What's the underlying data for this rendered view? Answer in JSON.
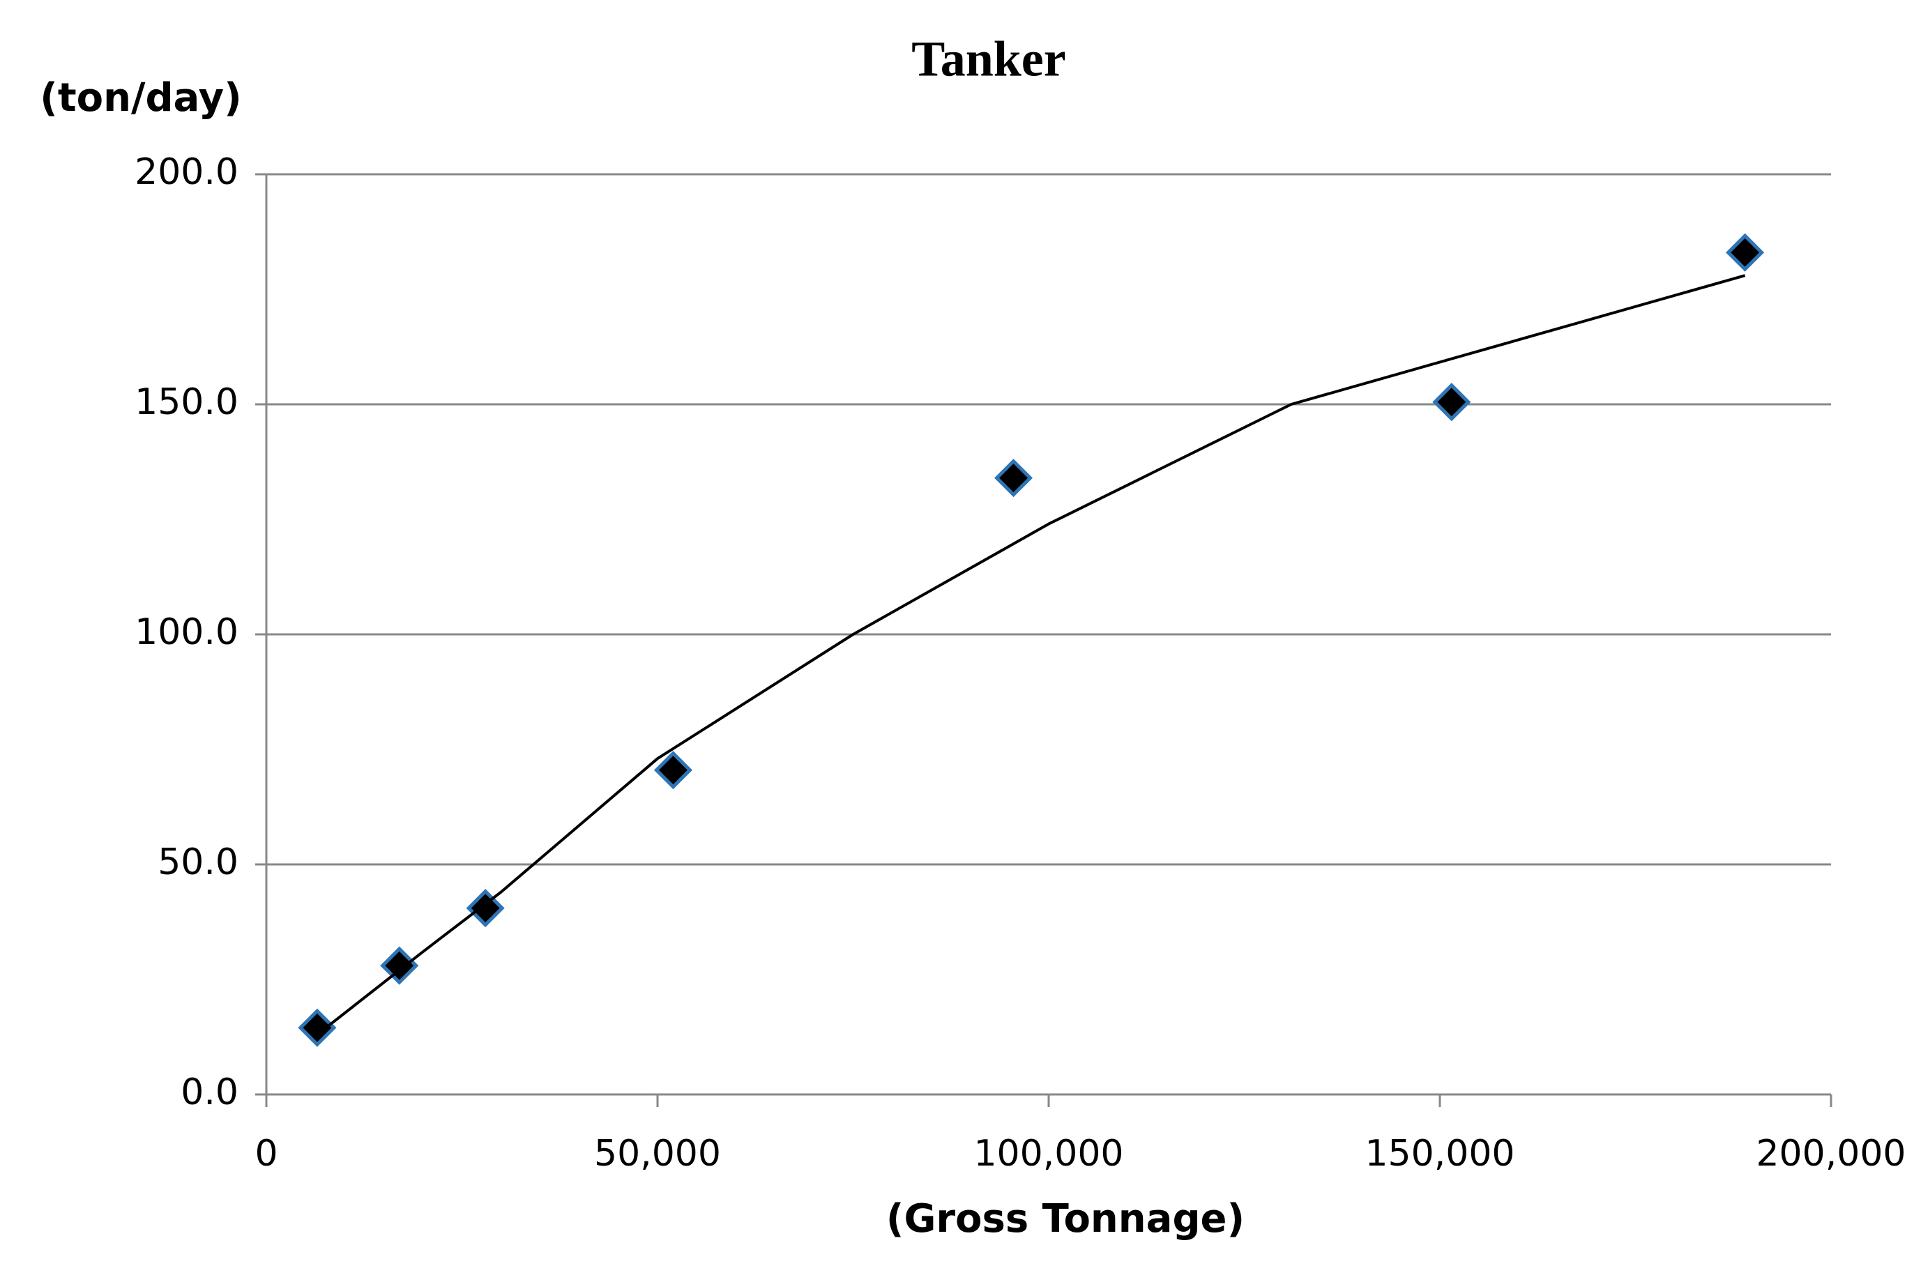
{
  "chart_data": {
    "type": "scatter",
    "title": "Tanker",
    "y_label": "(ton/day)",
    "x_label": "(Gross Tonnage)",
    "series": [
      {
        "name": null,
        "color": "#000000",
        "edge_color": "#2e75b6",
        "marker": "diamond",
        "x": [
          6500,
          17000,
          28000,
          52000,
          95500,
          151500,
          189000
        ],
        "values": [
          14.5,
          28,
          40.5,
          70.5,
          134,
          150.5,
          183
        ]
      },
      {
        "name": null,
        "color": "#000000",
        "marker": "line",
        "x": [
          6500,
          20000,
          30000,
          50000,
          75000,
          100000,
          131000,
          160000,
          189000
        ],
        "values": [
          13,
          31,
          44,
          73,
          100,
          124,
          150,
          164,
          178
        ]
      }
    ],
    "xlim": [
      0,
      200000
    ],
    "xticks": [
      0,
      {
        "value": 50000,
        "label": "50,000"
      },
      {
        "value": 100000,
        "label": "100,000"
      },
      {
        "value": 150000,
        "label": "150,000"
      },
      {
        "value": 200000,
        "label": "200,000"
      }
    ],
    "ylim": [
      0,
      200
    ],
    "yticks": [
      {
        "value": 0,
        "label": "0.0"
      },
      {
        "value": 50,
        "label": "50.0"
      },
      {
        "value": 100,
        "label": "100.0"
      },
      {
        "value": 150,
        "label": "150.0"
      },
      {
        "value": 200,
        "label": "200.0"
      }
    ],
    "grid": true
  }
}
